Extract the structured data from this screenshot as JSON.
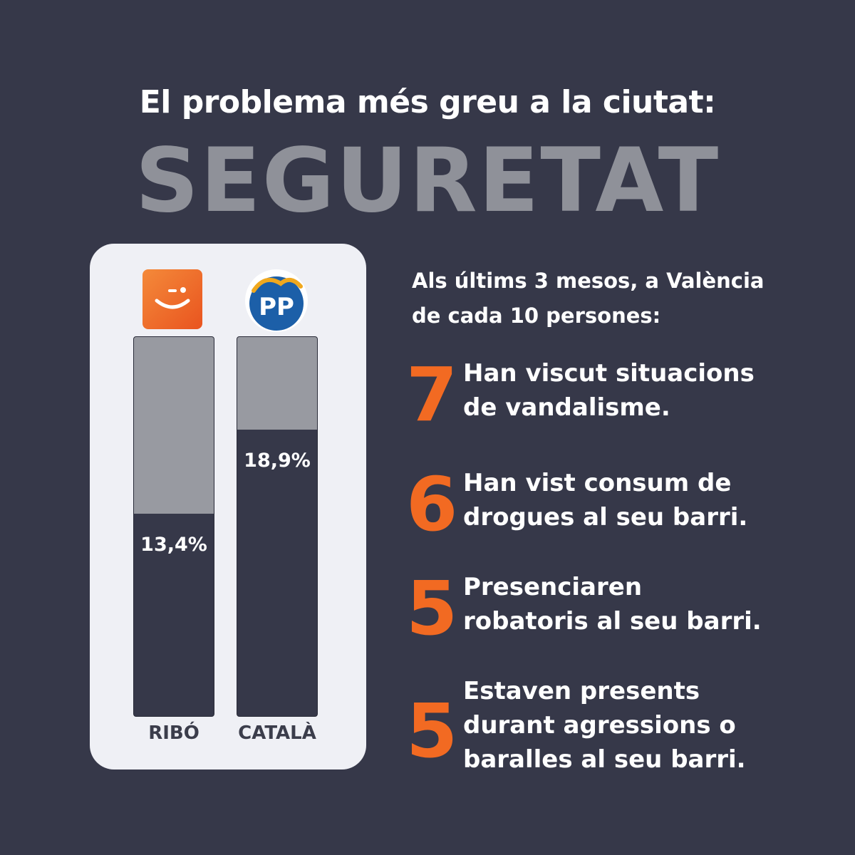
{
  "headline": "El problema més greu a la ciutat:",
  "big_word": "SEGURETAT",
  "chart_data": {
    "type": "bar",
    "categories": [
      "RIBÓ",
      "CATALÀ"
    ],
    "values": [
      13.4,
      18.9
    ],
    "value_labels": [
      "13,4%",
      "18,9%"
    ],
    "ylim": [
      0,
      25
    ],
    "colors": {
      "bar": "#363849",
      "track": "#989aa1",
      "card": "#eff0f5"
    },
    "logos": [
      "compromis-logo",
      "pp-logo"
    ],
    "pp_logo_text": "PP"
  },
  "intro": [
    "Als últims 3 mesos, a València",
    "de cada 10 persones:"
  ],
  "stats": [
    {
      "number": "7",
      "lines": [
        "Han viscut situacions",
        "de vandalisme."
      ]
    },
    {
      "number": "6",
      "lines": [
        "Han vist consum de",
        "drogues al seu barri."
      ]
    },
    {
      "number": "5",
      "lines": [
        "Presenciaren",
        "robatoris al seu barri."
      ]
    },
    {
      "number": "5",
      "lines": [
        "Estaven presents",
        "durant agressions o",
        "baralles al seu barri."
      ]
    }
  ],
  "accent_color": "#f26a22"
}
